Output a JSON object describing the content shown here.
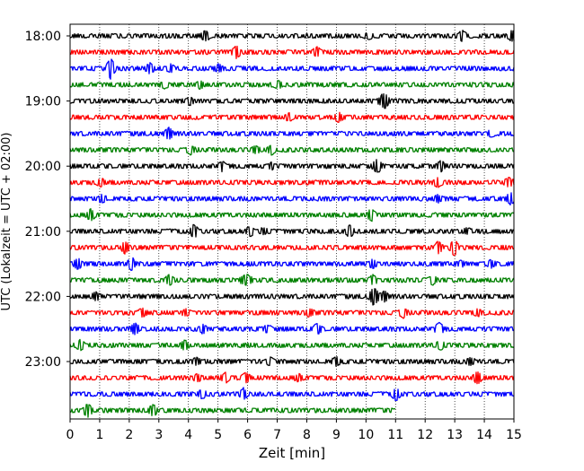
{
  "chart_data": {
    "type": "line",
    "subtype": "helicorder seismogram",
    "xlabel": "Zeit  [min]",
    "ylabel": "UTC (Lokalzeit = UTC + 02:00)",
    "xlim": [
      0,
      15
    ],
    "x_ticks": [
      "0",
      "1",
      "2",
      "3",
      "4",
      "5",
      "6",
      "7",
      "8",
      "9",
      "10",
      "11",
      "12",
      "13",
      "14",
      "15"
    ],
    "y_tick_labels": [
      "18:00",
      "19:00",
      "20:00",
      "21:00",
      "22:00",
      "23:00"
    ],
    "x_grid": "dotted vertical lines at each minute",
    "trace_colors": [
      "#000000",
      "#ff0000",
      "#0000ff",
      "#008000"
    ],
    "traces": [
      {
        "start": "18:00",
        "minutes": 15
      },
      {
        "start": "18:15",
        "minutes": 15
      },
      {
        "start": "18:30",
        "minutes": 15
      },
      {
        "start": "18:45",
        "minutes": 15
      },
      {
        "start": "19:00",
        "minutes": 15
      },
      {
        "start": "19:15",
        "minutes": 15
      },
      {
        "start": "19:30",
        "minutes": 15
      },
      {
        "start": "19:45",
        "minutes": 15
      },
      {
        "start": "20:00",
        "minutes": 15
      },
      {
        "start": "20:15",
        "minutes": 15
      },
      {
        "start": "20:30",
        "minutes": 15
      },
      {
        "start": "20:45",
        "minutes": 15
      },
      {
        "start": "21:00",
        "minutes": 15
      },
      {
        "start": "21:15",
        "minutes": 15
      },
      {
        "start": "21:30",
        "minutes": 15
      },
      {
        "start": "21:45",
        "minutes": 15
      },
      {
        "start": "22:00",
        "minutes": 15
      },
      {
        "start": "22:15",
        "minutes": 15
      },
      {
        "start": "22:30",
        "minutes": 15
      },
      {
        "start": "22:45",
        "minutes": 15
      },
      {
        "start": "23:00",
        "minutes": 15
      },
      {
        "start": "23:15",
        "minutes": 15
      },
      {
        "start": "23:30",
        "minutes": 15
      },
      {
        "start": "23:45",
        "minutes": 11
      }
    ]
  }
}
